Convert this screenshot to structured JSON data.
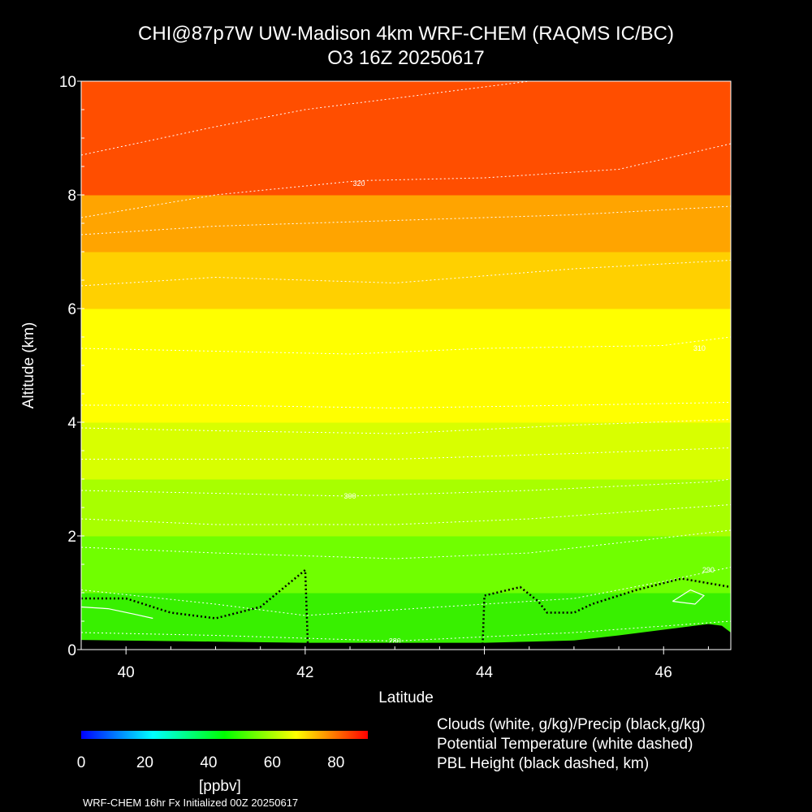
{
  "title_line1": "CHI@87p7W UW-Madison 4km WRF-CHEM (RAQMS IC/BC)",
  "title_line2": "O3 16Z 20250617",
  "legend": [
    "Clouds (white, g/kg)/Precip (black,g/kg)",
    "Potential Temperature (white dashed)",
    "PBL Height (black dashed, km)"
  ],
  "colorbar": {
    "units": "[ppbv]",
    "ticks": [
      "0",
      "20",
      "40",
      "60",
      "80"
    ],
    "range": [
      0,
      90
    ],
    "colors": [
      "#0000ff",
      "#00ffff",
      "#00ff00",
      "#ffff00",
      "#ff0000"
    ]
  },
  "footer": "WRF-CHEM 16hr  Fx Initialized 00Z 20250617",
  "chart_data": {
    "type": "heatmap",
    "title": "CHI@87p7W UW-Madison 4km WRF-CHEM (RAQMS IC/BC) O3 16Z 20250617",
    "xlabel": "Latitude",
    "ylabel": "Altitude (km)",
    "xlim": [
      39.5,
      46.75
    ],
    "ylim": [
      0,
      10
    ],
    "x_ticks": [
      "40",
      "42",
      "44",
      "46"
    ],
    "y_ticks": [
      "0",
      "2",
      "4",
      "6",
      "8",
      "10"
    ],
    "field": "O3 (ppbv)",
    "o3_colors": [
      "#00e600",
      "#38f000",
      "#70ff00",
      "#a8ff00",
      "#d8ff00",
      "#ffff00",
      "#ffd000",
      "#ffa400",
      "#ff7a00",
      "#ff4e00",
      "#ff2600"
    ],
    "o3_by_altitude_km": [
      {
        "z": 0.5,
        "o3_ppbv": 45
      },
      {
        "z": 1.5,
        "o3_ppbv": 50
      },
      {
        "z": 2.5,
        "o3_ppbv": 54
      },
      {
        "z": 3.5,
        "o3_ppbv": 60
      },
      {
        "z": 4.5,
        "o3_ppbv": 63
      },
      {
        "z": 5.5,
        "o3_ppbv": 66
      },
      {
        "z": 6.5,
        "o3_ppbv": 70
      },
      {
        "z": 7.5,
        "o3_ppbv": 76
      },
      {
        "z": 8.5,
        "o3_ppbv": 82
      },
      {
        "z": 9.5,
        "o3_ppbv": 85
      }
    ],
    "potential_temperature_contours": [
      {
        "label": "280",
        "label_x": 43.0,
        "label_z": 0.15,
        "points": [
          [
            39.5,
            0.3
          ],
          [
            41,
            0.25
          ],
          [
            43,
            0.15
          ],
          [
            45,
            0.3
          ],
          [
            46.75,
            0.5
          ]
        ]
      },
      {
        "label": "290",
        "label_x": 46.5,
        "label_z": 1.4,
        "points": [
          [
            39.5,
            1.05
          ],
          [
            41,
            0.8
          ],
          [
            42,
            0.6
          ],
          [
            44,
            0.8
          ],
          [
            45,
            0.9
          ],
          [
            46,
            1.2
          ],
          [
            46.75,
            1.45
          ]
        ]
      },
      {
        "label": "",
        "label_x": null,
        "label_z": null,
        "points": [
          [
            39.5,
            1.8
          ],
          [
            41,
            1.7
          ],
          [
            43,
            1.6
          ],
          [
            44.5,
            1.7
          ],
          [
            46.75,
            2.1
          ]
        ]
      },
      {
        "label": "",
        "label_x": null,
        "label_z": null,
        "points": [
          [
            39.5,
            2.3
          ],
          [
            41,
            2.2
          ],
          [
            43,
            2.2
          ],
          [
            44.5,
            2.3
          ],
          [
            46.75,
            2.55
          ]
        ]
      },
      {
        "label": "300",
        "label_x": 42.5,
        "label_z": 2.7,
        "points": [
          [
            39.5,
            2.8
          ],
          [
            41,
            2.75
          ],
          [
            42.5,
            2.7
          ],
          [
            44.5,
            2.8
          ],
          [
            46.5,
            2.95
          ],
          [
            46.75,
            3.0
          ]
        ]
      },
      {
        "label": "",
        "label_x": null,
        "label_z": null,
        "points": [
          [
            39.5,
            3.35
          ],
          [
            41,
            3.35
          ],
          [
            43,
            3.35
          ],
          [
            45,
            3.45
          ],
          [
            46.75,
            3.55
          ]
        ]
      },
      {
        "label": "",
        "label_x": null,
        "label_z": null,
        "points": [
          [
            39.5,
            3.9
          ],
          [
            41,
            3.85
          ],
          [
            43,
            3.8
          ],
          [
            45,
            3.95
          ],
          [
            46.75,
            4.05
          ]
        ]
      },
      {
        "label": "",
        "label_x": null,
        "label_z": null,
        "points": [
          [
            39.5,
            4.3
          ],
          [
            41,
            4.3
          ],
          [
            43,
            4.25
          ],
          [
            45,
            4.3
          ],
          [
            46.75,
            4.35
          ]
        ]
      },
      {
        "label": "310",
        "label_x": 46.4,
        "label_z": 5.3,
        "points": [
          [
            39.5,
            5.3
          ],
          [
            41,
            5.25
          ],
          [
            42.5,
            5.2
          ],
          [
            44,
            5.3
          ],
          [
            46,
            5.35
          ],
          [
            46.75,
            5.5
          ]
        ]
      },
      {
        "label": "",
        "label_x": null,
        "label_z": null,
        "points": [
          [
            39.5,
            6.4
          ],
          [
            41,
            6.55
          ],
          [
            43,
            6.45
          ],
          [
            45,
            6.7
          ],
          [
            46.75,
            6.85
          ]
        ]
      },
      {
        "label": "",
        "label_x": null,
        "label_z": null,
        "points": [
          [
            39.5,
            7.3
          ],
          [
            41,
            7.45
          ],
          [
            43,
            7.55
          ],
          [
            45,
            7.65
          ],
          [
            46.75,
            7.8
          ]
        ]
      },
      {
        "label": "320",
        "label_x": 42.6,
        "label_z": 8.2,
        "points": [
          [
            39.5,
            7.6
          ],
          [
            41,
            8.0
          ],
          [
            42.6,
            8.25
          ],
          [
            44,
            8.3
          ],
          [
            45.5,
            8.45
          ],
          [
            46.75,
            8.9
          ]
        ]
      },
      {
        "label": "",
        "label_x": null,
        "label_z": null,
        "points": [
          [
            39.5,
            8.7
          ],
          [
            41,
            9.2
          ],
          [
            42,
            9.5
          ],
          [
            43.5,
            9.8
          ],
          [
            44.5,
            10.0
          ]
        ]
      }
    ],
    "pbl_height_km": {
      "x": [
        39.5,
        40.0,
        40.5,
        41.0,
        41.5,
        42.0,
        42.03,
        42.1,
        43.0,
        43.98,
        44.0,
        44.4,
        44.6,
        44.7,
        44.8,
        45.0,
        45.2,
        45.7,
        46.2,
        46.75
      ],
      "z": [
        0.9,
        0.9,
        0.65,
        0.55,
        0.75,
        1.4,
        0.05,
        0.05,
        0.05,
        0.05,
        0.95,
        1.1,
        0.85,
        0.65,
        0.65,
        0.65,
        0.8,
        1.05,
        1.25,
        1.1
      ]
    },
    "cloud_contours": [
      {
        "points": [
          [
            39.5,
            0.75
          ],
          [
            39.8,
            0.72
          ],
          [
            40.1,
            0.62
          ],
          [
            40.3,
            0.55
          ]
        ]
      },
      {
        "points": [
          [
            46.1,
            0.85
          ],
          [
            46.3,
            1.05
          ],
          [
            46.45,
            0.95
          ],
          [
            46.35,
            0.8
          ],
          [
            46.1,
            0.85
          ]
        ]
      }
    ],
    "terrain_km": {
      "x": [
        39.5,
        41.0,
        42.0,
        43.0,
        44.0,
        44.5,
        45.0,
        45.5,
        46.0,
        46.5,
        46.65,
        46.75
      ],
      "z": [
        0.17,
        0.14,
        0.12,
        0.12,
        0.12,
        0.14,
        0.16,
        0.25,
        0.35,
        0.45,
        0.42,
        0.3
      ]
    }
  }
}
